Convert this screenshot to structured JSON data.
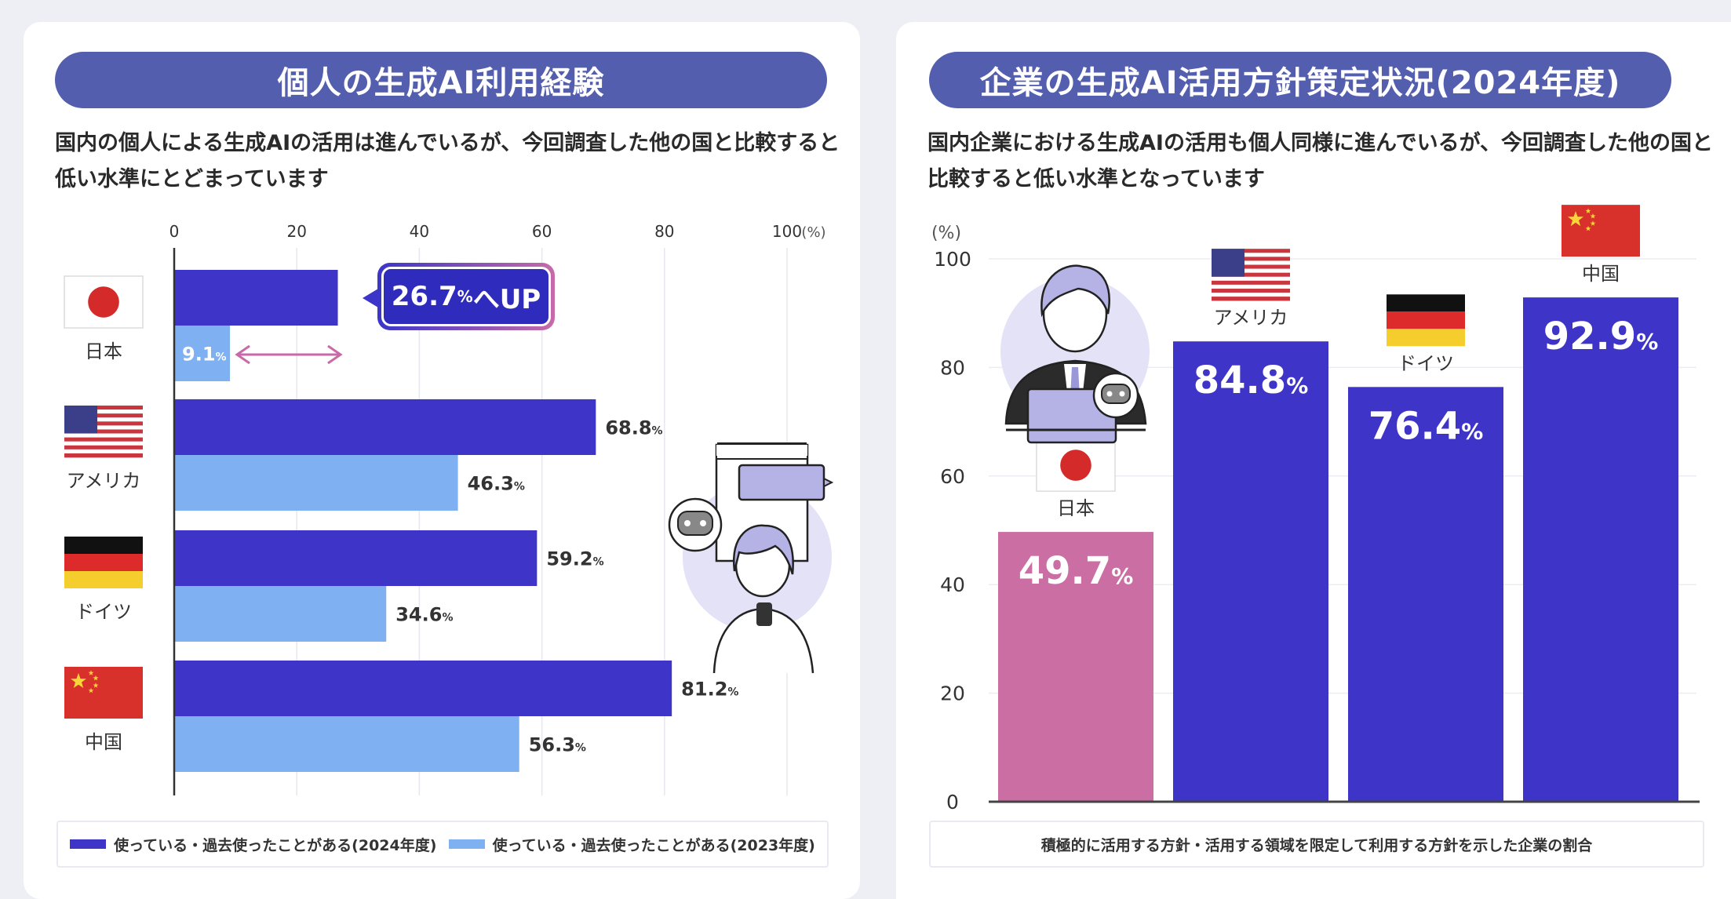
{
  "left": {
    "title": "個人の生成AI利用経験",
    "description": "国内の個人による生成AIの活用は進んでいるが、今回調査した他の国と比較すると低い水準にとどまっています",
    "callout": {
      "value": "26.7",
      "unit": "%",
      "suffix": "へUP"
    },
    "legend": [
      {
        "label": "使っている・過去使ったことがある(2024年度)",
        "color": "#3e35c8"
      },
      {
        "label": "使っている・過去使ったことがある(2023年度)",
        "color": "#7fb1f2"
      }
    ]
  },
  "right": {
    "title": "企業の生成AI活用方針策定状況(2024年度)",
    "description": "国内企業における生成AIの活用も個人同様に進んでいるが、今回調査した他の国と比較すると低い水準となっています",
    "legend_note": "積極的に活用する方針・活用する領域を限定して利用する方針を示した企業の割合"
  },
  "chart_data": [
    {
      "type": "bar",
      "orientation": "horizontal",
      "categories": [
        "日本",
        "アメリカ",
        "ドイツ",
        "中国"
      ],
      "series": [
        {
          "name": "使っている・過去使ったことがある(2024年度)",
          "values": [
            26.7,
            68.8,
            59.2,
            81.2
          ],
          "color": "#3e35c8"
        },
        {
          "name": "使っている・過去使ったことがある(2023年度)",
          "values": [
            9.1,
            46.3,
            34.6,
            56.3
          ],
          "color": "#7fb1f2"
        }
      ],
      "xlim": [
        0,
        100
      ],
      "xticks": [
        "0",
        "20",
        "40",
        "60",
        "80",
        "100"
      ],
      "unit_label": "(%)",
      "data_labels": [
        [
          "",
          "68.8",
          "59.2",
          "81.2"
        ],
        [
          "9.1",
          "46.3",
          "34.6",
          "56.3"
        ]
      ],
      "label_unit": "%",
      "grid": true
    },
    {
      "type": "bar",
      "orientation": "vertical",
      "categories": [
        "日本",
        "アメリカ",
        "ドイツ",
        "中国"
      ],
      "values": [
        49.7,
        84.8,
        76.4,
        92.9
      ],
      "colors": [
        "#cb6ea3",
        "#3e35c8",
        "#3e35c8",
        "#3e35c8"
      ],
      "ylim": [
        0,
        100
      ],
      "yticks": [
        "0",
        "20",
        "40",
        "60",
        "80",
        "100"
      ],
      "unit_label": "(%)",
      "data_labels": [
        "49.7",
        "84.8",
        "76.4",
        "92.9"
      ],
      "label_unit": "%",
      "grid": true
    }
  ],
  "colors": {
    "title_bg": "#535fae",
    "bar_2024": "#3e35c8",
    "bar_2023": "#7fb1f2",
    "japan_bar": "#cb6ea3",
    "accent_pink": "#c86aa8"
  }
}
